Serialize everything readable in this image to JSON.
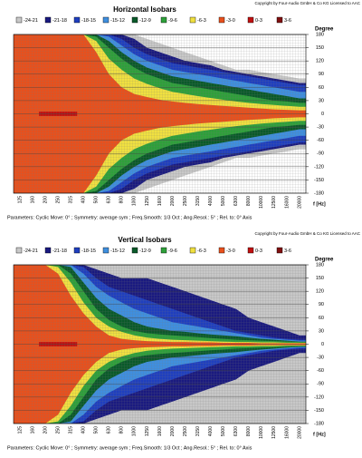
{
  "chart_data": [
    {
      "type": "isobar",
      "copyright": "Copyright by Four-Audio GmbH & Co KG   Licensed to AAC",
      "title": "Horizontal Isobars",
      "y_label": "Degree",
      "x_label": "f [Hz]",
      "parameters": "Parameters:   Cyclic Move: 0°  ;  Symmetry: average sym  ;  Freq.Smooth: 1/3  Oct  ;  Ang.Resol.: 5°  ;  Rel. to: 0° Axis",
      "categories": [
        "125",
        "160",
        "200",
        "250",
        "315",
        "400",
        "500",
        "630",
        "800",
        "1000",
        "1250",
        "1600",
        "2000",
        "2500",
        "3150",
        "4000",
        "5000",
        "6300",
        "8000",
        "10000",
        "12500",
        "16000",
        "20000"
      ],
      "mirror": true,
      "grid": true,
      "ylim": [
        -180,
        180
      ],
      "yticks": [
        180,
        150,
        120,
        90,
        60,
        30,
        0,
        -30,
        -60,
        -90,
        -120,
        -150,
        -180
      ],
      "series": [
        {
          "name": "-24-21",
          "color": "#c8c8c8",
          "values": [
            180,
            180,
            180,
            180,
            180,
            180,
            180,
            180,
            180,
            180,
            170,
            160,
            150,
            140,
            130,
            120,
            110,
            100,
            100,
            95,
            90,
            85,
            80
          ]
        },
        {
          "name": "-21-18",
          "color": "#1a1a80",
          "values": [
            180,
            180,
            180,
            180,
            180,
            180,
            180,
            180,
            180,
            170,
            150,
            140,
            130,
            120,
            115,
            110,
            100,
            95,
            90,
            85,
            80,
            75,
            70
          ]
        },
        {
          "name": "-18-15",
          "color": "#1f3fbf",
          "values": [
            180,
            180,
            180,
            180,
            180,
            180,
            180,
            180,
            170,
            150,
            135,
            125,
            115,
            110,
            105,
            100,
            95,
            90,
            85,
            80,
            75,
            70,
            65
          ]
        },
        {
          "name": "-15-12",
          "color": "#3f8fdf",
          "values": [
            180,
            180,
            180,
            180,
            180,
            180,
            180,
            175,
            155,
            135,
            120,
            110,
            100,
            95,
            90,
            85,
            80,
            75,
            70,
            65,
            60,
            55,
            50
          ]
        },
        {
          "name": "-12-9",
          "color": "#0a5a2a",
          "values": [
            180,
            180,
            180,
            180,
            180,
            180,
            180,
            165,
            140,
            120,
            105,
            95,
            85,
            80,
            75,
            70,
            65,
            60,
            55,
            50,
            45,
            40,
            35
          ]
        },
        {
          "name": "-9-6",
          "color": "#2ea03a",
          "values": [
            180,
            180,
            180,
            180,
            180,
            180,
            175,
            150,
            125,
            105,
            90,
            80,
            70,
            65,
            60,
            55,
            50,
            45,
            40,
            35,
            30,
            28,
            25
          ]
        },
        {
          "name": "-6-3",
          "color": "#f0e040",
          "values": [
            180,
            180,
            180,
            180,
            180,
            180,
            165,
            125,
            100,
            80,
            68,
            58,
            50,
            45,
            40,
            36,
            32,
            28,
            25,
            22,
            20,
            18,
            16
          ]
        },
        {
          "name": "-3-0",
          "color": "#e8501c",
          "values": [
            180,
            180,
            180,
            180,
            180,
            180,
            140,
            90,
            60,
            45,
            38,
            32,
            28,
            25,
            22,
            20,
            18,
            16,
            14,
            12,
            10,
            9,
            8
          ]
        },
        {
          "name": "0-3",
          "color": "#c01010",
          "values": [
            null,
            null,
            5,
            5,
            5,
            null,
            null,
            null,
            null,
            null,
            null,
            null,
            null,
            null,
            null,
            null,
            null,
            null,
            null,
            null,
            null,
            null,
            null
          ]
        },
        {
          "name": "3-6",
          "color": "#801010",
          "values": [
            null,
            null,
            null,
            null,
            null,
            null,
            null,
            null,
            null,
            null,
            null,
            null,
            null,
            null,
            null,
            null,
            null,
            null,
            null,
            null,
            null,
            null,
            null
          ]
        }
      ]
    },
    {
      "type": "isobar",
      "copyright": "Copyright by Four-Audio GmbH & Co KG   Licensed to AAC",
      "title": "Vertical Isobars",
      "y_label": "Degree",
      "x_label": "f [Hz]",
      "parameters": "Parameters:   Cyclic Move: 0°  ;  Symmetry: average sym  ;  Freq.Smooth: 1/3  Oct  ;  Ang.Resol.: 5°  ;  Rel. to: 0° Axis",
      "categories": [
        "125",
        "160",
        "200",
        "250",
        "315",
        "400",
        "500",
        "630",
        "800",
        "1000",
        "1250",
        "1600",
        "2000",
        "2500",
        "3150",
        "4000",
        "5000",
        "6300",
        "8000",
        "10000",
        "12500",
        "16000",
        "20000"
      ],
      "mirror": true,
      "grid": true,
      "ylim": [
        -180,
        180
      ],
      "yticks": [
        180,
        150,
        120,
        90,
        60,
        30,
        0,
        -30,
        -60,
        -90,
        -120,
        -150,
        -180
      ],
      "series": [
        {
          "name": "-24-21",
          "color": "#c8c8c8",
          "values": [
            180,
            180,
            180,
            180,
            180,
            180,
            180,
            180,
            180,
            180,
            180,
            180,
            180,
            180,
            180,
            180,
            180,
            180,
            180,
            180,
            180,
            180,
            180
          ]
        },
        {
          "name": "-21-18",
          "color": "#1a1a80",
          "values": [
            180,
            180,
            180,
            180,
            180,
            180,
            170,
            160,
            150,
            150,
            150,
            140,
            130,
            120,
            110,
            100,
            90,
            80,
            60,
            50,
            40,
            30,
            20
          ]
        },
        {
          "name": "-18-15",
          "color": "#1f3fbf",
          "values": [
            180,
            180,
            180,
            180,
            180,
            175,
            150,
            130,
            120,
            110,
            100,
            90,
            80,
            70,
            60,
            50,
            40,
            30,
            25,
            20,
            15,
            12,
            10
          ]
        },
        {
          "name": "-15-12",
          "color": "#3f8fdf",
          "values": [
            180,
            180,
            180,
            180,
            180,
            160,
            130,
            110,
            95,
            80,
            70,
            60,
            50,
            45,
            40,
            35,
            30,
            25,
            20,
            15,
            12,
            10,
            8
          ]
        },
        {
          "name": "-12-9",
          "color": "#0a5a2a",
          "values": [
            180,
            180,
            180,
            180,
            175,
            140,
            105,
            80,
            65,
            50,
            40,
            35,
            30,
            28,
            25,
            22,
            20,
            18,
            15,
            12,
            10,
            8,
            6
          ]
        },
        {
          "name": "-9-6",
          "color": "#2ea03a",
          "values": [
            180,
            180,
            180,
            180,
            160,
            120,
            80,
            55,
            40,
            30,
            25,
            22,
            20,
            18,
            16,
            14,
            12,
            10,
            9,
            8,
            7,
            6,
            5
          ]
        },
        {
          "name": "-6-3",
          "color": "#f0e040",
          "values": [
            180,
            180,
            180,
            175,
            140,
            95,
            60,
            40,
            28,
            20,
            15,
            12,
            10,
            9,
            8,
            7,
            6,
            5,
            5,
            4,
            4,
            3,
            3
          ]
        },
        {
          "name": "-3-0",
          "color": "#e8501c",
          "values": [
            180,
            180,
            180,
            160,
            110,
            70,
            40,
            20,
            12,
            9,
            7,
            6,
            5,
            5,
            4,
            4,
            3,
            3,
            3,
            2,
            2,
            2,
            2
          ]
        },
        {
          "name": "0-3",
          "color": "#c01010",
          "values": [
            null,
            null,
            5,
            5,
            5,
            null,
            null,
            null,
            null,
            null,
            null,
            null,
            null,
            null,
            null,
            null,
            null,
            null,
            null,
            null,
            null,
            null,
            null
          ]
        },
        {
          "name": "3-6",
          "color": "#801010",
          "values": [
            null,
            null,
            null,
            null,
            null,
            null,
            null,
            null,
            null,
            null,
            null,
            null,
            null,
            null,
            null,
            null,
            null,
            null,
            null,
            null,
            null,
            null,
            null
          ]
        }
      ]
    }
  ]
}
